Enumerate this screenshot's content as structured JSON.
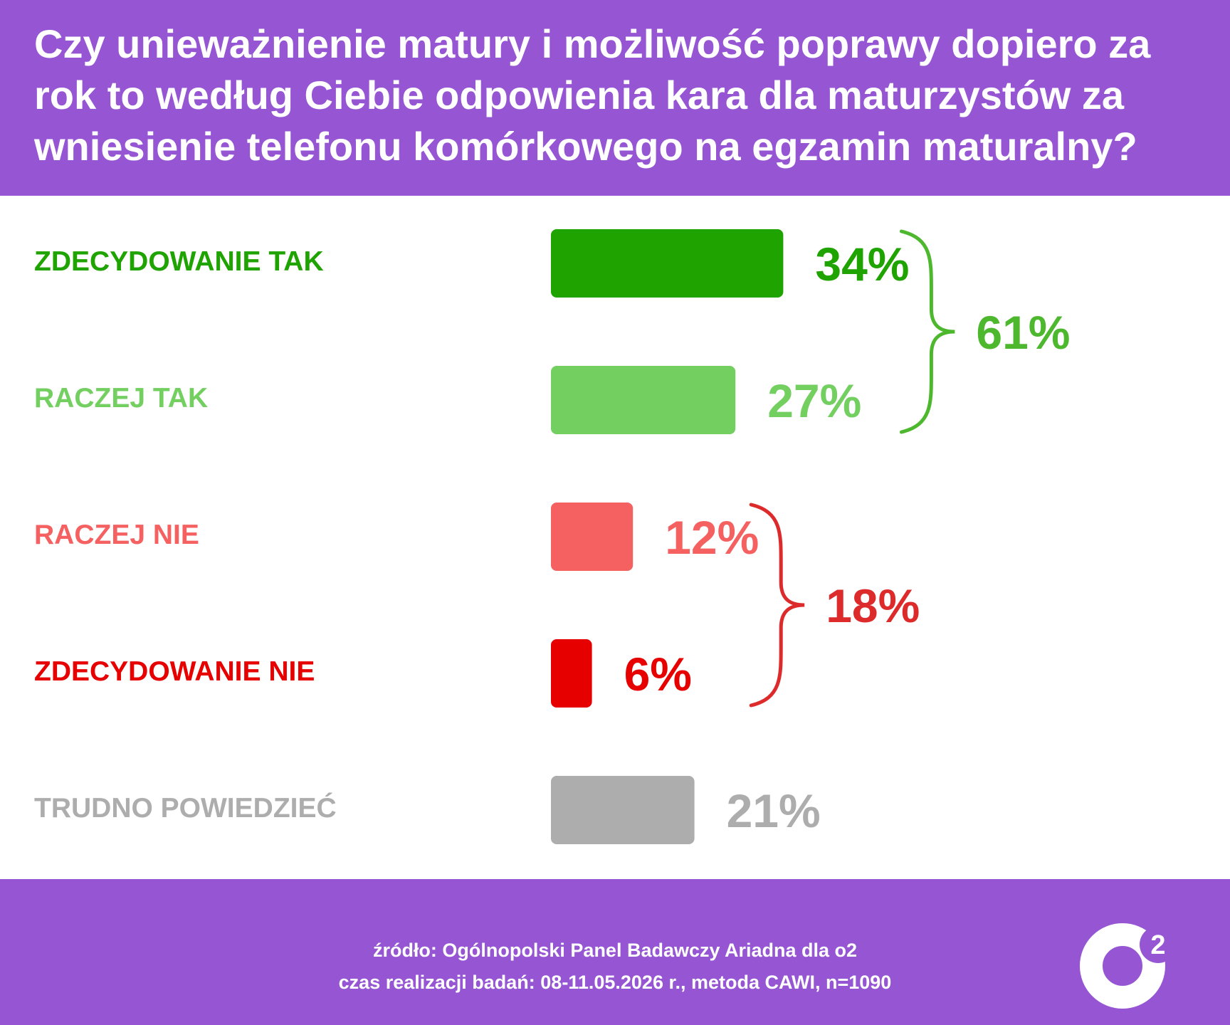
{
  "title": "Czy unieważnienie matury i możliwość poprawy dopiero za rok to według Ciebie odpowienia kara dla maturzystów za wniesienie telefonu komórkowego na egzamin maturalny?",
  "chart_data": {
    "type": "bar",
    "orientation": "horizontal",
    "categories": [
      "ZDECYDOWANIE TAK",
      "RACZEJ TAK",
      "RACZEJ NIE",
      "ZDECYDOWANIE NIE",
      "TRUDNO POWIEDZIEĆ"
    ],
    "values": [
      34,
      27,
      12,
      6,
      21
    ],
    "value_labels": [
      "34%",
      "27%",
      "12%",
      "6%",
      "21%"
    ],
    "colors": [
      "#1fa300",
      "#72cf60",
      "#f56161",
      "#e60000",
      "#adadad"
    ],
    "groups": [
      {
        "members": [
          0,
          1
        ],
        "total": 61,
        "label": "61%",
        "color": "#4db82e"
      },
      {
        "members": [
          2,
          3
        ],
        "total": 18,
        "label": "18%",
        "color": "#dd2a2a"
      }
    ]
  },
  "footer": {
    "source_line1": "źródło: Ogólnopolski Panel Badawczy Ariadna dla o2",
    "source_line2": "czas realizacji badań: 08-11.05.2026 r., metoda CAWI, n=1090",
    "logo_superscript": "2"
  }
}
